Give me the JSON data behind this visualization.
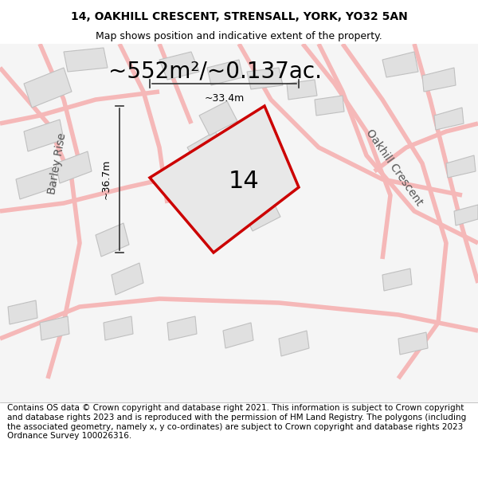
{
  "title_line1": "14, OAKHILL CRESCENT, STRENSALL, YORK, YO32 5AN",
  "title_line2": "Map shows position and indicative extent of the property.",
  "area_label": "~552m²/~0.137ac.",
  "property_number": "14",
  "dim_height": "~36.7m",
  "dim_width": "~33.4m",
  "street_label1": "Barley Rise",
  "street_label2": "Oakhill Crescent",
  "footer_text": "Contains OS data © Crown copyright and database right 2021. This information is subject to Crown copyright and database rights 2023 and is reproduced with the permission of HM Land Registry. The polygons (including the associated geometry, namely x, y co-ordinates) are subject to Crown copyright and database rights 2023 Ordnance Survey 100026316.",
  "bg_color": "#f5f5f5",
  "map_bg": "#f0f0f0",
  "property_fill": "#e8e8e8",
  "property_edge": "#cc0000",
  "road_color": "#f5b8b8",
  "building_fill": "#e0e0e0",
  "building_edge": "#c0c0c0",
  "dim_line_color": "#333333",
  "title_fontsize": 10,
  "subtitle_fontsize": 9,
  "area_fontsize": 20,
  "number_fontsize": 22,
  "dim_fontsize": 9,
  "street_fontsize": 10,
  "footer_fontsize": 7.5
}
